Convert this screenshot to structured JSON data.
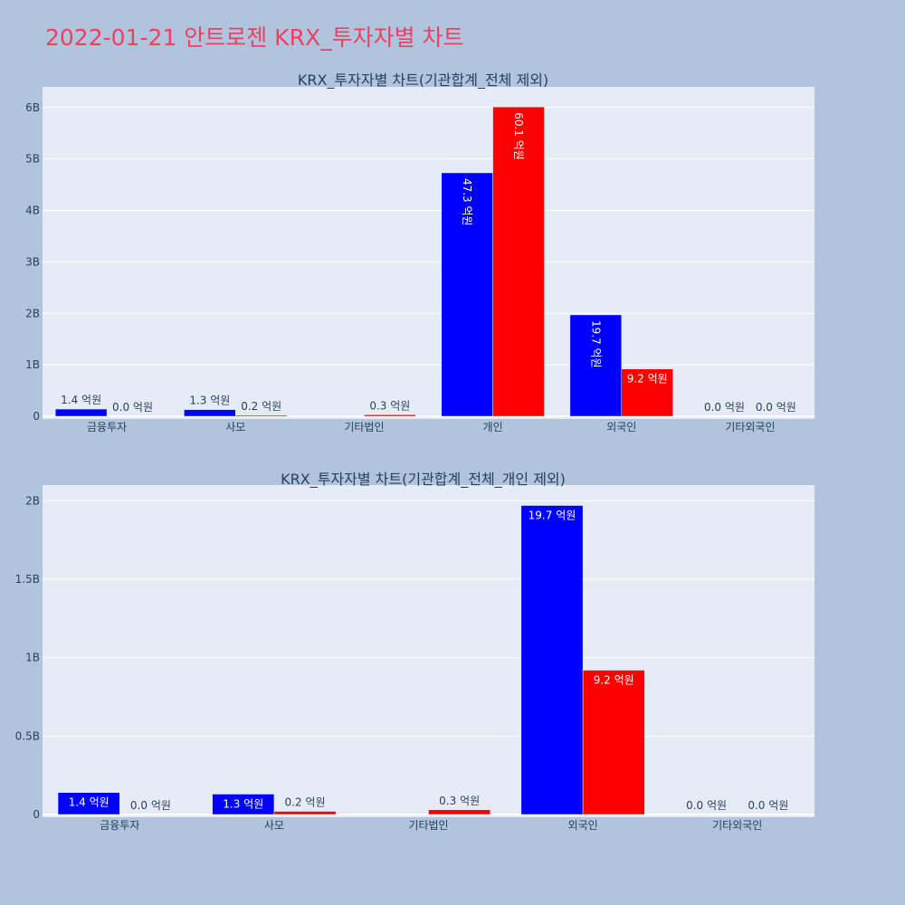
{
  "page": {
    "title": "2022-01-21 안트로젠 KRX_투자자별 차트"
  },
  "colors": {
    "title": "#ef4060",
    "background": "#b0c4de",
    "plot_bg": "#e5ecf6",
    "series_a": "#0000ff",
    "series_b": "#ff0000",
    "axis_text": "#2a3f5f"
  },
  "chart_data": [
    {
      "type": "bar",
      "title": "KRX_투자자별 차트(기관합계_전체 제외)",
      "categories": [
        "금융투자",
        "사모",
        "기타법인",
        "개인",
        "외국인",
        "기타외국인"
      ],
      "series": [
        {
          "color": "#0000ff",
          "values": [
            140000000,
            130000000,
            0,
            4730000000,
            1970000000,
            0
          ],
          "labels": [
            "1.4 억원",
            "1.3 억원",
            "",
            "47.3 억원",
            "19.7 억원",
            "0.0 억원"
          ]
        },
        {
          "color": "#ff0000",
          "values": [
            0,
            20000000,
            30000000,
            6010000000,
            920000000,
            0
          ],
          "labels": [
            "0.0 억원",
            "0.2 억원",
            "0.3 억원",
            "60.1 억원",
            "9.2 억원",
            "0.0 억원"
          ]
        }
      ],
      "yticks": [
        0,
        1000000000,
        2000000000,
        3000000000,
        4000000000,
        5000000000,
        6000000000
      ],
      "ytick_labels": [
        "0",
        "1B",
        "2B",
        "3B",
        "4B",
        "5B",
        "6B"
      ],
      "ylim": [
        0,
        6400000000
      ],
      "grid": true
    },
    {
      "type": "bar",
      "title": "KRX_투자자별 차트(기관합계_전체_개인 제외)",
      "categories": [
        "금융투자",
        "사모",
        "기타법인",
        "외국인",
        "기타외국인"
      ],
      "series": [
        {
          "color": "#0000ff",
          "values": [
            140000000,
            130000000,
            0,
            1970000000,
            0
          ],
          "labels": [
            "1.4 억원",
            "1.3 억원",
            "",
            "19.7 억원",
            "0.0 억원"
          ]
        },
        {
          "color": "#ff0000",
          "values": [
            0,
            20000000,
            30000000,
            920000000,
            0
          ],
          "labels": [
            "0.0 억원",
            "0.2 억원",
            "0.3 억원",
            "9.2 억원",
            "0.0 억원"
          ]
        }
      ],
      "yticks": [
        0,
        500000000,
        1000000000,
        1500000000,
        2000000000
      ],
      "ytick_labels": [
        "0",
        "0.5B",
        "1B",
        "1.5B",
        "2B"
      ],
      "ylim": [
        0,
        2100000000
      ],
      "grid": true
    }
  ]
}
